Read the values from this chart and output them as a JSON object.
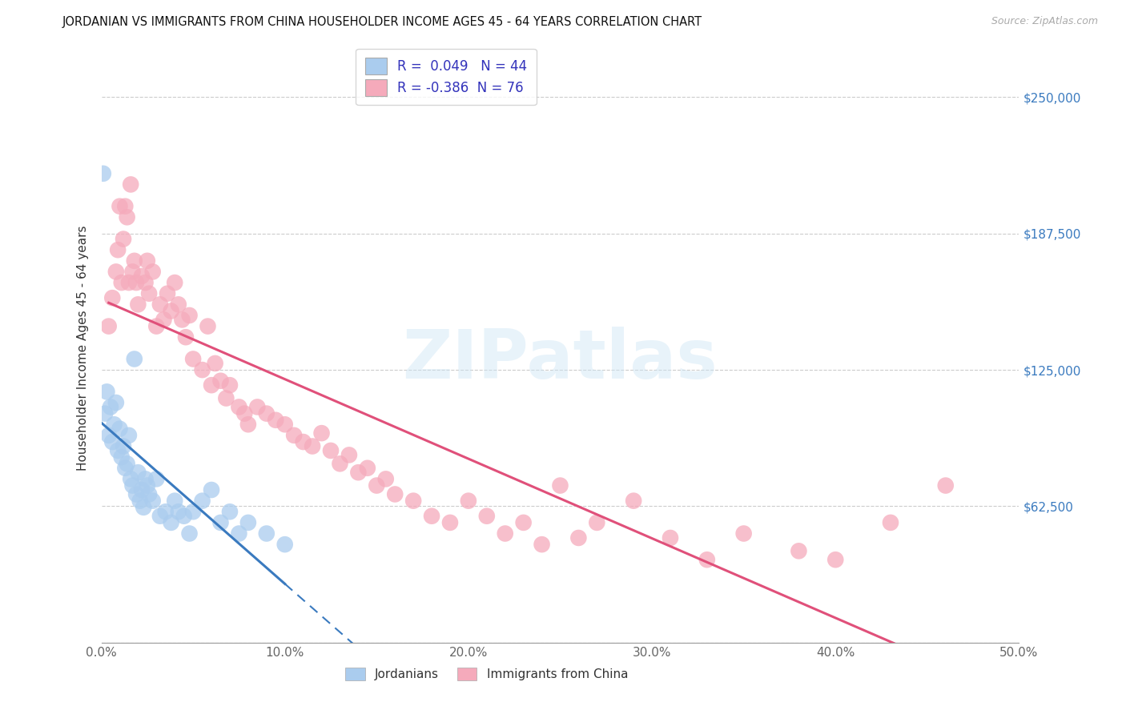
{
  "title": "JORDANIAN VS IMMIGRANTS FROM CHINA HOUSEHOLDER INCOME AGES 45 - 64 YEARS CORRELATION CHART",
  "source": "Source: ZipAtlas.com",
  "ylabel": "Householder Income Ages 45 - 64 years",
  "r_jordanian": 0.049,
  "n_jordanian": 44,
  "r_china": -0.386,
  "n_china": 76,
  "xlim": [
    0.0,
    0.5
  ],
  "ylim": [
    0,
    270000
  ],
  "xticks": [
    0.0,
    0.1,
    0.2,
    0.3,
    0.4,
    0.5
  ],
  "xticklabels": [
    "0.0%",
    "10.0%",
    "20.0%",
    "30.0%",
    "40.0%",
    "50.0%"
  ],
  "ytick_vals": [
    0,
    62500,
    125000,
    187500,
    250000
  ],
  "ytick_labels": [
    "",
    "$62,500",
    "$125,000",
    "$187,500",
    "$250,000"
  ],
  "color_jordanian": "#aaccee",
  "color_china": "#f5aabb",
  "line_color_jordanian": "#3a7abf",
  "line_color_china": "#e0507a",
  "legend_text_color": "#3333bb",
  "background": "#ffffff",
  "jordanian_x": [
    0.001,
    0.002,
    0.003,
    0.004,
    0.005,
    0.006,
    0.007,
    0.008,
    0.009,
    0.01,
    0.011,
    0.012,
    0.013,
    0.014,
    0.015,
    0.016,
    0.017,
    0.018,
    0.019,
    0.02,
    0.021,
    0.022,
    0.023,
    0.024,
    0.025,
    0.026,
    0.028,
    0.03,
    0.032,
    0.035,
    0.038,
    0.04,
    0.042,
    0.045,
    0.048,
    0.05,
    0.055,
    0.06,
    0.065,
    0.07,
    0.075,
    0.08,
    0.09,
    0.1
  ],
  "jordanian_y": [
    215000,
    105000,
    115000,
    95000,
    108000,
    92000,
    100000,
    110000,
    88000,
    98000,
    85000,
    90000,
    80000,
    82000,
    95000,
    75000,
    72000,
    130000,
    68000,
    78000,
    65000,
    70000,
    62000,
    75000,
    72000,
    68000,
    65000,
    75000,
    58000,
    60000,
    55000,
    65000,
    60000,
    58000,
    50000,
    60000,
    65000,
    70000,
    55000,
    60000,
    50000,
    55000,
    50000,
    45000
  ],
  "china_x": [
    0.004,
    0.006,
    0.008,
    0.009,
    0.01,
    0.011,
    0.012,
    0.013,
    0.014,
    0.015,
    0.016,
    0.017,
    0.018,
    0.019,
    0.02,
    0.022,
    0.024,
    0.025,
    0.026,
    0.028,
    0.03,
    0.032,
    0.034,
    0.036,
    0.038,
    0.04,
    0.042,
    0.044,
    0.046,
    0.048,
    0.05,
    0.055,
    0.058,
    0.06,
    0.062,
    0.065,
    0.068,
    0.07,
    0.075,
    0.078,
    0.08,
    0.085,
    0.09,
    0.095,
    0.1,
    0.105,
    0.11,
    0.115,
    0.12,
    0.125,
    0.13,
    0.135,
    0.14,
    0.145,
    0.15,
    0.155,
    0.16,
    0.17,
    0.18,
    0.19,
    0.2,
    0.21,
    0.22,
    0.23,
    0.24,
    0.25,
    0.26,
    0.27,
    0.29,
    0.31,
    0.33,
    0.35,
    0.38,
    0.4,
    0.43,
    0.46
  ],
  "china_y": [
    145000,
    158000,
    170000,
    180000,
    200000,
    165000,
    185000,
    200000,
    195000,
    165000,
    210000,
    170000,
    175000,
    165000,
    155000,
    168000,
    165000,
    175000,
    160000,
    170000,
    145000,
    155000,
    148000,
    160000,
    152000,
    165000,
    155000,
    148000,
    140000,
    150000,
    130000,
    125000,
    145000,
    118000,
    128000,
    120000,
    112000,
    118000,
    108000,
    105000,
    100000,
    108000,
    105000,
    102000,
    100000,
    95000,
    92000,
    90000,
    96000,
    88000,
    82000,
    86000,
    78000,
    80000,
    72000,
    75000,
    68000,
    65000,
    58000,
    55000,
    65000,
    58000,
    50000,
    55000,
    45000,
    72000,
    48000,
    55000,
    65000,
    48000,
    38000,
    50000,
    42000,
    38000,
    55000,
    72000
  ]
}
